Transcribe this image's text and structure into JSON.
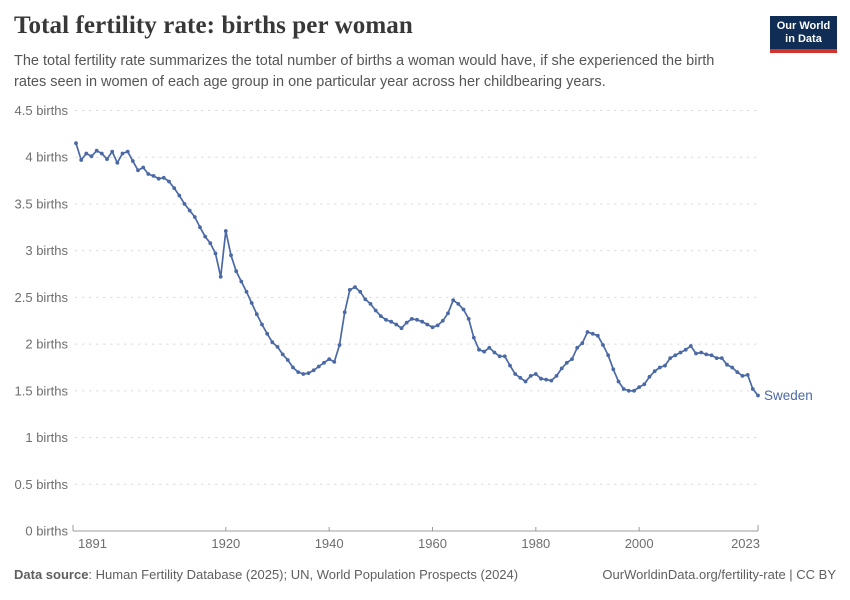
{
  "header": {
    "title": "Total fertility rate: births per woman",
    "subtitle": "The total fertility rate summarizes the total number of births a woman would have, if she experienced the birth rates seen in women of each age group in one particular year across her childbearing years.",
    "logo": {
      "line1": "Our World",
      "line2": "in Data",
      "bg_color": "#102d56",
      "accent_color": "#d0342c"
    }
  },
  "footer": {
    "source_label": "Data source",
    "source_rest": ": Human Fertility Database (2025); UN, World Population Prospects (2024)",
    "link": "OurWorldinData.org/fertility-rate | CC BY"
  },
  "colors": {
    "title": "#383838",
    "subtitle": "#555555",
    "tick_label": "#6e6e6e",
    "gridline": "#dcdcdc",
    "axis": "#9c9c9c",
    "background": "#ffffff"
  },
  "chart_data": {
    "type": "line",
    "title": "Total fertility rate: births per woman",
    "xlabel": "",
    "ylabel": "births",
    "xlim": [
      1891,
      2023
    ],
    "ylim": [
      0,
      4.5
    ],
    "x_ticks": [
      1891,
      1920,
      1940,
      1960,
      1980,
      2000,
      2023
    ],
    "y_ticks": [
      0,
      0.5,
      1,
      1.5,
      2,
      2.5,
      3,
      3.5,
      4,
      4.5
    ],
    "y_tick_suffix": " births",
    "grid": "horizontal-dashed",
    "legend": "end-of-line-label",
    "x": [
      1891,
      1892,
      1893,
      1894,
      1895,
      1896,
      1897,
      1898,
      1899,
      1900,
      1901,
      1902,
      1903,
      1904,
      1905,
      1906,
      1907,
      1908,
      1909,
      1910,
      1911,
      1912,
      1913,
      1914,
      1915,
      1916,
      1917,
      1918,
      1919,
      1920,
      1921,
      1922,
      1923,
      1924,
      1925,
      1926,
      1927,
      1928,
      1929,
      1930,
      1931,
      1932,
      1933,
      1934,
      1935,
      1936,
      1937,
      1938,
      1939,
      1940,
      1941,
      1942,
      1943,
      1944,
      1945,
      1946,
      1947,
      1948,
      1949,
      1950,
      1951,
      1952,
      1953,
      1954,
      1955,
      1956,
      1957,
      1958,
      1959,
      1960,
      1961,
      1962,
      1963,
      1964,
      1965,
      1966,
      1967,
      1968,
      1969,
      1970,
      1971,
      1972,
      1973,
      1974,
      1975,
      1976,
      1977,
      1978,
      1979,
      1980,
      1981,
      1982,
      1983,
      1984,
      1985,
      1986,
      1987,
      1988,
      1989,
      1990,
      1991,
      1992,
      1993,
      1994,
      1995,
      1996,
      1997,
      1998,
      1999,
      2000,
      2001,
      2002,
      2003,
      2004,
      2005,
      2006,
      2007,
      2008,
      2009,
      2010,
      2011,
      2012,
      2013,
      2014,
      2015,
      2016,
      2017,
      2018,
      2019,
      2020,
      2021,
      2022,
      2023
    ],
    "series": [
      {
        "name": "Sweden",
        "color": "#4b69a5",
        "values": [
          4.15,
          3.97,
          4.04,
          4.01,
          4.07,
          4.04,
          3.98,
          4.06,
          3.94,
          4.04,
          4.06,
          3.96,
          3.86,
          3.89,
          3.82,
          3.8,
          3.77,
          3.78,
          3.74,
          3.67,
          3.59,
          3.5,
          3.43,
          3.36,
          3.25,
          3.15,
          3.08,
          2.97,
          2.72,
          3.21,
          2.95,
          2.78,
          2.67,
          2.56,
          2.44,
          2.32,
          2.21,
          2.11,
          2.02,
          1.97,
          1.89,
          1.83,
          1.75,
          1.7,
          1.68,
          1.69,
          1.72,
          1.76,
          1.8,
          1.84,
          1.81,
          1.99,
          2.34,
          2.58,
          2.61,
          2.56,
          2.48,
          2.43,
          2.36,
          2.3,
          2.26,
          2.24,
          2.21,
          2.17,
          2.23,
          2.27,
          2.26,
          2.24,
          2.21,
          2.18,
          2.2,
          2.25,
          2.33,
          2.47,
          2.43,
          2.37,
          2.27,
          2.07,
          1.94,
          1.92,
          1.96,
          1.91,
          1.87,
          1.87,
          1.77,
          1.68,
          1.64,
          1.6,
          1.66,
          1.68,
          1.63,
          1.62,
          1.61,
          1.66,
          1.74,
          1.8,
          1.84,
          1.96,
          2.01,
          2.13,
          2.11,
          2.09,
          1.99,
          1.88,
          1.73,
          1.6,
          1.52,
          1.5,
          1.5,
          1.54,
          1.57,
          1.65,
          1.71,
          1.75,
          1.77,
          1.85,
          1.88,
          1.91,
          1.94,
          1.98,
          1.9,
          1.91,
          1.89,
          1.88,
          1.85,
          1.85,
          1.78,
          1.75,
          1.7,
          1.66,
          1.67,
          1.52,
          1.45
        ]
      }
    ]
  }
}
